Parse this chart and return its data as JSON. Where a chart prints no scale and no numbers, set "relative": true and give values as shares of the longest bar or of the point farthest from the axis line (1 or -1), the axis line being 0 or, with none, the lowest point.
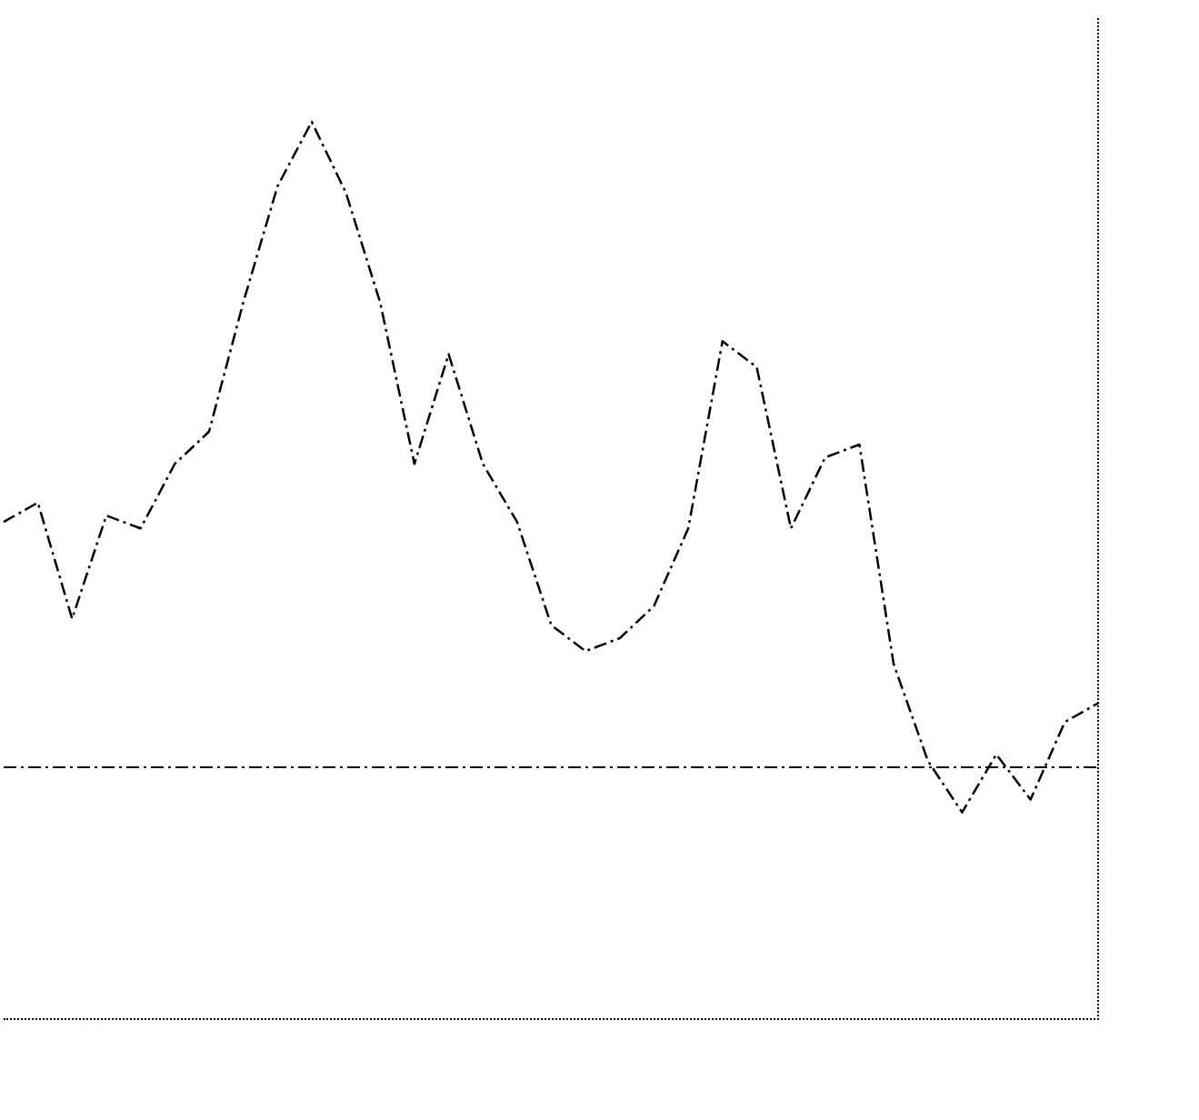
{
  "chart_data": {
    "type": "line",
    "relative": true,
    "categories": [
      null,
      null,
      null,
      null,
      null,
      null,
      null,
      null,
      null,
      null,
      null,
      null,
      null,
      null,
      null,
      null,
      null,
      null,
      null,
      null,
      null,
      null,
      null,
      null,
      null,
      null,
      null,
      null,
      null,
      null,
      null,
      null,
      null
    ],
    "series": [
      {
        "color": "#000000",
        "values": [
          0.38,
          0.41,
          0.23,
          0.39,
          0.37,
          0.47,
          0.52,
          0.72,
          0.9,
          1,
          0.89,
          0.72,
          0.47,
          0.64,
          0.47,
          0.38,
          0.22,
          0.18,
          0.2,
          0.25,
          0.37,
          0.66,
          0.62,
          0.37,
          0.48,
          0.5,
          0.16,
          0.01,
          -0.07,
          0.02,
          -0.05,
          0.07,
          0.1
        ]
      }
    ],
    "ref_lines": [
      {
        "axis": "y",
        "value": 0,
        "color": "#000000",
        "line_style": "dashed"
      }
    ],
    "line_style": "dashed",
    "marker": "none",
    "grid": false,
    "legend": false
  }
}
